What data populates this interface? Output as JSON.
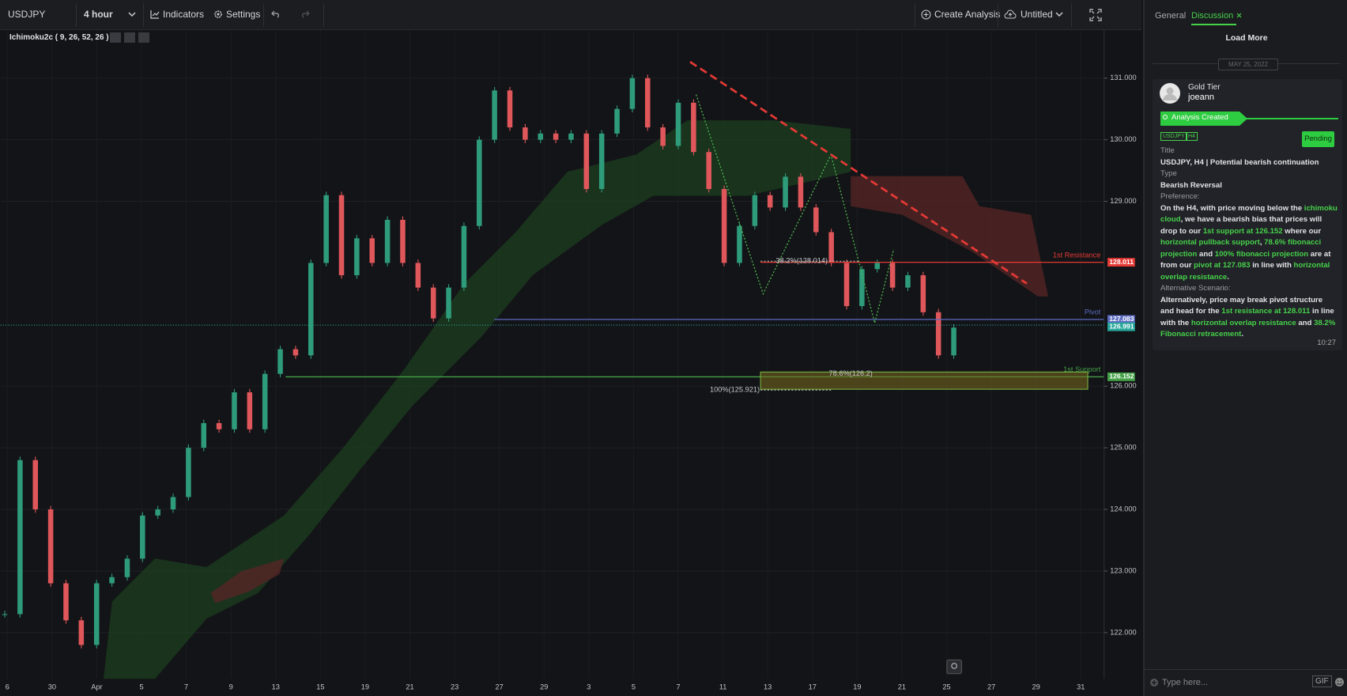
{
  "toolbar": {
    "symbol": "USDJPY",
    "interval": "4 hour",
    "indicators": "Indicators",
    "settings": "Settings",
    "create_analysis": "Create Analysis",
    "layout_name": "Untitled"
  },
  "indicator_label": "Ichimoku2c ( 9, 26, 52, 26 )",
  "chart": {
    "ylim": [
      121.25,
      131.78
    ],
    "yticks": [
      {
        "value": 131,
        "label": "131.000"
      },
      {
        "value": 130,
        "label": "130.000"
      },
      {
        "value": 129,
        "label": "129.000"
      },
      {
        "value": 126,
        "label": "126.000"
      },
      {
        "value": 125,
        "label": "125.000"
      },
      {
        "value": 124,
        "label": "124.000"
      },
      {
        "value": 123,
        "label": "123.000"
      },
      {
        "value": 122,
        "label": "122.000"
      }
    ],
    "xlabels": [
      "6",
      "30",
      "Apr",
      "5",
      "7",
      "9",
      "13",
      "15",
      "19",
      "21",
      "23",
      "27",
      "29",
      "3",
      "5",
      "7",
      "11",
      "13",
      "17",
      "19",
      "21",
      "25",
      "27",
      "29",
      "31"
    ],
    "closes": [
      122.3,
      124.8,
      124.0,
      122.8,
      122.2,
      121.8,
      122.8,
      122.9,
      123.2,
      123.9,
      124.0,
      124.2,
      125.0,
      125.4,
      125.3,
      125.9,
      125.3,
      126.2,
      126.6,
      126.5,
      128.0,
      129.1,
      127.8,
      128.4,
      128.0,
      128.7,
      128.0,
      127.6,
      127.1,
      127.6,
      128.6,
      130.0,
      130.8,
      130.2,
      130.0,
      130.1,
      130.0,
      130.1,
      129.2,
      130.1,
      130.5,
      131.0,
      130.2,
      129.9,
      130.6,
      129.8,
      129.2,
      128.0,
      128.6,
      129.1,
      128.9,
      129.4,
      128.9,
      128.5,
      128.0,
      127.3,
      127.9,
      128.0,
      127.6,
      127.8,
      127.2,
      126.5,
      126.95
    ],
    "levels": [
      {
        "name": "1st Resistance",
        "value": 128.011,
        "color": "#e53935"
      },
      {
        "name": "Pivot",
        "value": 127.083,
        "color": "#5c6bc0"
      },
      {
        "name": "1st Support",
        "value": 126.152,
        "color": "#43a047"
      },
      {
        "value": 126.991,
        "color": "#26a69a"
      }
    ],
    "fib_labels": [
      "38.2%(128.014)",
      "78.6%(126.2)",
      "100%(125.921)"
    ]
  },
  "sidebar": {
    "tabs": [
      "General",
      "Discussion"
    ],
    "load_more": "Load More",
    "date": "MAY 25, 2022",
    "post": {
      "tier": "Gold Tier",
      "user": "joeann",
      "status": "Analysis Created",
      "tags": [
        "USDJPY",
        "H4"
      ],
      "state": "Pending",
      "title_label": "Title",
      "title": "USDJPY, H4 | Potential bearish continuation",
      "type_label": "Type",
      "type": "Bearish Reversal",
      "preference_label": "Preference:",
      "preference": [
        {
          "text": "On the H4, with price moving below the "
        },
        {
          "text": "ichimoku cloud",
          "highlight": true
        },
        {
          "text": ", we have a bearish bias that prices will drop to our "
        },
        {
          "text": "1st support at 126.152",
          "highlight": true
        },
        {
          "text": " where our "
        },
        {
          "text": "horizontal pullback support",
          "highlight": true
        },
        {
          "text": ", "
        },
        {
          "text": "78.6% fibonacci projection",
          "highlight": true
        },
        {
          "text": " and "
        },
        {
          "text": "100% fibonacci projection",
          "highlight": true
        },
        {
          "text": " are at from our "
        },
        {
          "text": "pivot at 127.083",
          "highlight": true
        },
        {
          "text": " in line with "
        },
        {
          "text": "horizontal overlap resistance",
          "highlight": true
        },
        {
          "text": "."
        }
      ],
      "alternative_label": "Alternative Scenario:",
      "alternative": [
        {
          "text": "Alternatively, price may break pivot structure and head for the "
        },
        {
          "text": "1st resistance at 128.011",
          "highlight": true
        },
        {
          "text": " in line with the "
        },
        {
          "text": "horizontal overlap resistance",
          "highlight": true
        },
        {
          "text": " and "
        },
        {
          "text": "38.2% Fibonacci retracement",
          "highlight": true
        },
        {
          "text": "."
        }
      ],
      "time": "10:27"
    },
    "input_placeholder": "Type here...",
    "gif": "GIF"
  }
}
